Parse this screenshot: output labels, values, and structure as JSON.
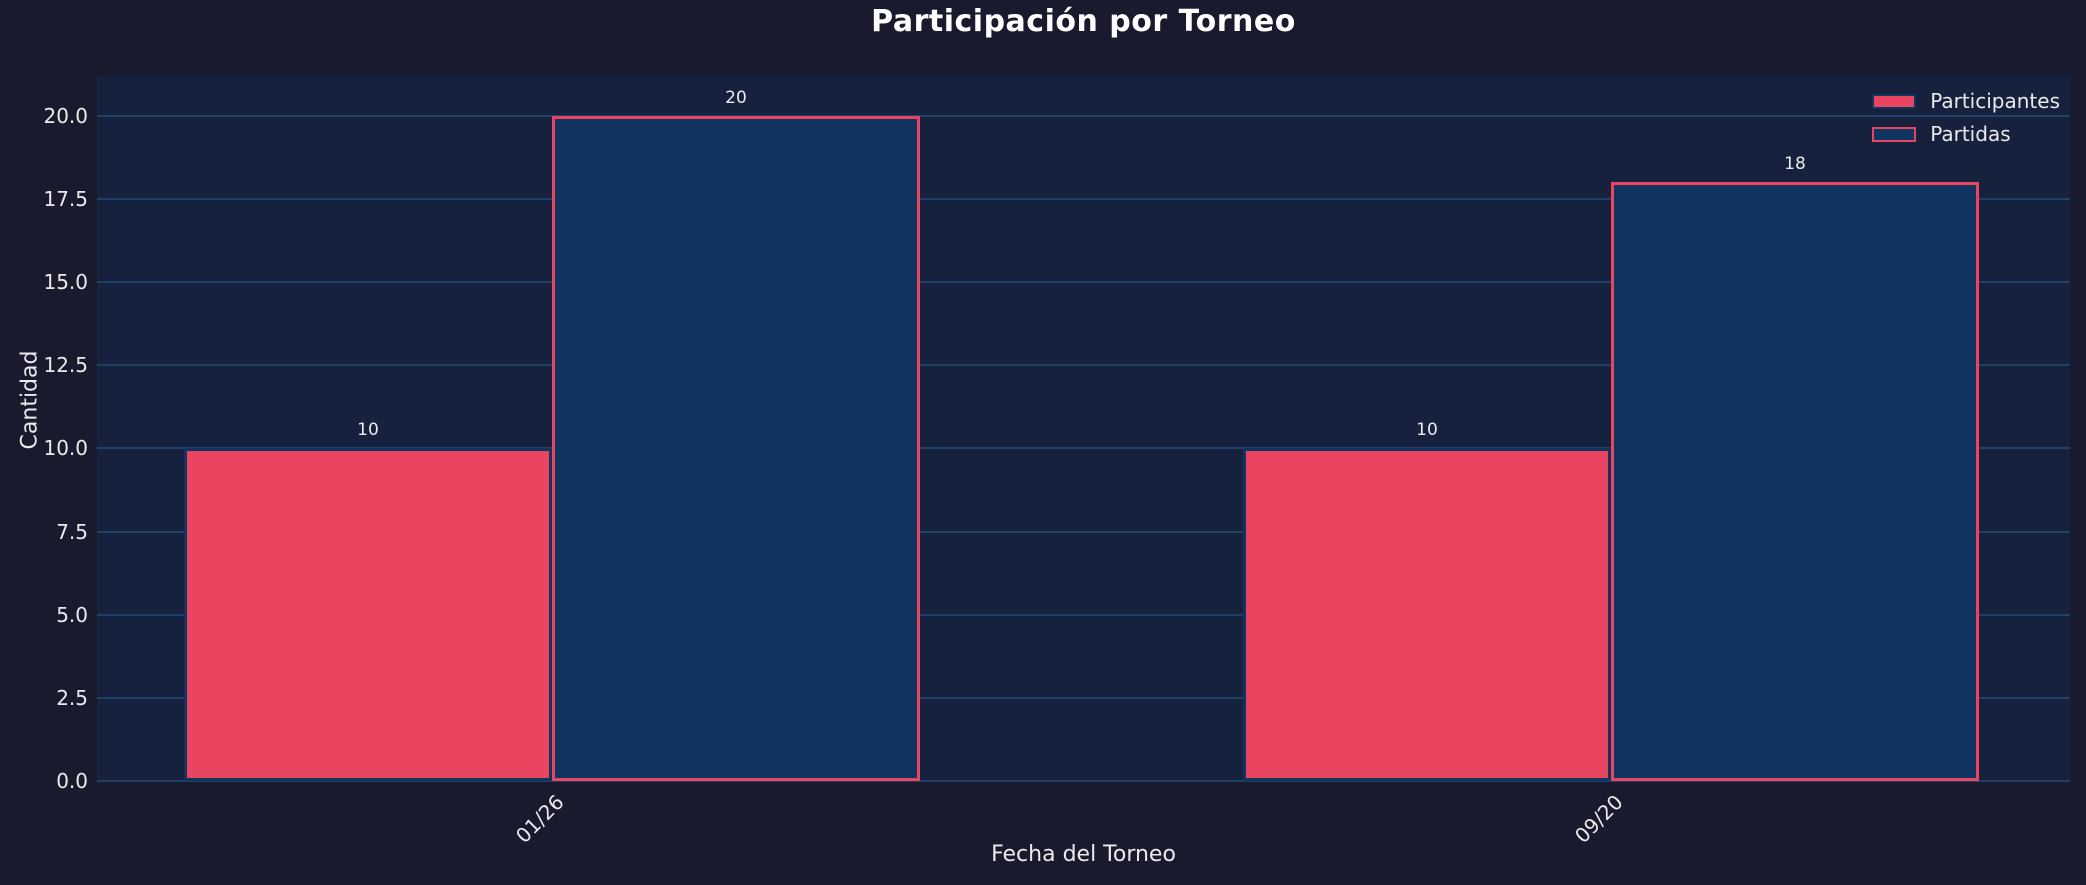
{
  "colors": {
    "figure_background": "#1a1a2e",
    "plot_background": "#16213e",
    "gridline": "#1f4068",
    "tick_text": "#eaeaea",
    "title_text": "#ffffff",
    "participantes_fill": "#e94560",
    "participantes_edge": "#0f3460",
    "partidas_fill": "#0f3460",
    "partidas_edge": "#e94560"
  },
  "chart_data": {
    "type": "bar",
    "title": "Participación por Torneo",
    "xlabel": "Fecha del Torneo",
    "ylabel": "Cantidad",
    "categories": [
      "01/26",
      "09/20"
    ],
    "series": [
      {
        "name": "Participantes",
        "values": [
          10,
          10
        ],
        "fill": "#e94560",
        "edge": "#0f3460"
      },
      {
        "name": "Partidas",
        "values": [
          20,
          18
        ],
        "fill": "#0f3460",
        "edge": "#e94560"
      }
    ],
    "bar_value_labels": [
      [
        "10",
        "10"
      ],
      [
        "20",
        "18"
      ]
    ],
    "y_tick_labels": [
      "0.0",
      "2.5",
      "5.0",
      "7.5",
      "10.0",
      "12.5",
      "15.0",
      "17.5",
      "20.0"
    ],
    "y_tick_values": [
      0,
      2.5,
      5,
      7.5,
      10,
      12.5,
      15,
      17.5,
      20
    ],
    "ylim": [
      0,
      21.2
    ],
    "grid": true,
    "legend_position": "top-right",
    "x_tick_rotation_deg": 45
  }
}
